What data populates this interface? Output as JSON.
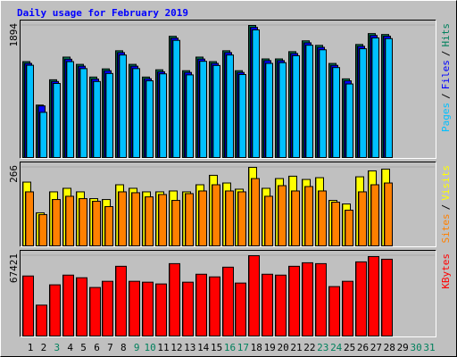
{
  "title": "Daily usage for February 2019",
  "legend_separator": "/",
  "chart_data": [
    {
      "type": "bar",
      "categories": [
        "1",
        "2",
        "3",
        "4",
        "5",
        "6",
        "7",
        "8",
        "9",
        "10",
        "11",
        "12",
        "13",
        "14",
        "15",
        "16",
        "17",
        "18",
        "19",
        "20",
        "21",
        "22",
        "23",
        "24",
        "25",
        "26",
        "27",
        "28",
        "29",
        "30",
        "31"
      ],
      "category_colors": [
        "#000000",
        "#000000",
        "#00805c",
        "#000000",
        "#000000",
        "#000000",
        "#000000",
        "#000000",
        "#00805c",
        "#00805c",
        "#000000",
        "#000000",
        "#000000",
        "#000000",
        "#000000",
        "#00805c",
        "#00805c",
        "#000000",
        "#000000",
        "#000000",
        "#000000",
        "#000000",
        "#00805c",
        "#00805c",
        "#000000",
        "#000000",
        "#000000",
        "#000000",
        "#000000",
        "#00805c",
        "#00805c"
      ],
      "ylim": [
        0,
        1894
      ],
      "yticks": [
        1894
      ],
      "series": [
        {
          "name": "Hits",
          "color": "#00805c",
          "values": [
            1375,
            752,
            1115,
            1440,
            1336,
            1154,
            1271,
            1531,
            1336,
            1154,
            1258,
            1738,
            1245,
            1440,
            1375,
            1531,
            1245,
            1894,
            1414,
            1414,
            1518,
            1673,
            1608,
            1349,
            1128,
            1621,
            1777,
            1764,
            null,
            null,
            null
          ]
        },
        {
          "name": "Files",
          "color": "#0000ff",
          "values": [
            1350,
            740,
            1090,
            1410,
            1310,
            1125,
            1245,
            1505,
            1310,
            1130,
            1230,
            1712,
            1220,
            1412,
            1350,
            1505,
            1220,
            1866,
            1390,
            1390,
            1492,
            1645,
            1580,
            1322,
            1100,
            1595,
            1750,
            1740,
            null,
            null,
            null
          ]
        },
        {
          "name": "Pages",
          "color": "#00c0ff",
          "values": [
            1323,
            648,
            1062,
            1375,
            1275,
            1090,
            1205,
            1470,
            1275,
            1100,
            1200,
            1680,
            1185,
            1380,
            1320,
            1470,
            1190,
            1830,
            1350,
            1360,
            1460,
            1610,
            1545,
            1290,
            1055,
            1560,
            1715,
            1705,
            null,
            null,
            null
          ]
        }
      ]
    },
    {
      "type": "bar",
      "ylim": [
        0,
        266
      ],
      "yticks": [
        266
      ],
      "series": [
        {
          "name": "Visits",
          "color": "#ffff00",
          "values": [
            216,
            112,
            183,
            195,
            183,
            160,
            157,
            207,
            195,
            183,
            183,
            186,
            183,
            207,
            239,
            213,
            192,
            266,
            195,
            228,
            236,
            225,
            231,
            154,
            142,
            234,
            254,
            260,
            null,
            null,
            null
          ]
        },
        {
          "name": "Sites",
          "color": "#ff8000",
          "values": [
            183,
            106,
            157,
            168,
            160,
            151,
            133,
            183,
            180,
            166,
            174,
            154,
            177,
            186,
            207,
            186,
            183,
            228,
            168,
            204,
            186,
            201,
            186,
            148,
            121,
            183,
            207,
            213,
            null,
            null,
            null
          ]
        }
      ]
    },
    {
      "type": "bar",
      "ylim": [
        0,
        67421
      ],
      "yticks": [
        67421
      ],
      "series": [
        {
          "name": "KBytes",
          "color": "#ff0000",
          "values": [
            50388,
            25935,
            42978,
            51129,
            48906,
            40755,
            45942,
            58539,
            45942,
            45201,
            43719,
            60762,
            45201,
            51870,
            49647,
            57798,
            44460,
            67421,
            51870,
            51129,
            58539,
            61503,
            60762,
            41496,
            45942,
            62244,
            66690,
            64467,
            null,
            null,
            null
          ]
        }
      ]
    }
  ]
}
